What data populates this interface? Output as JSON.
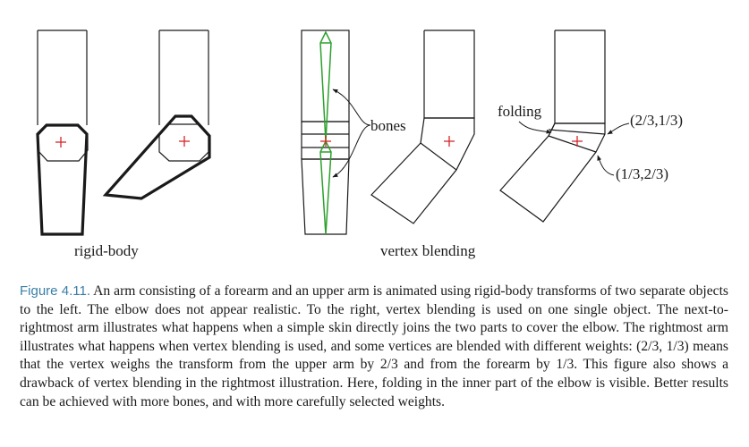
{
  "figure": {
    "labels": {
      "rigid_body": "rigid-body",
      "vertex_blending": "vertex blending",
      "bones": "bones",
      "folding": "folding",
      "weight_upper": "(2/3,1/3)",
      "weight_lower": "(1/3,2/3)"
    },
    "colors": {
      "outline": "#1a1a1a",
      "bone": "#2ca02c",
      "joint_marker": "#d62728",
      "caption_label": "#3a7fa8"
    }
  },
  "caption": {
    "label": "Figure 4.11.",
    "text": "An arm consisting of a forearm and an upper arm is animated using rigid-body transforms of two separate objects to the left. The elbow does not appear realistic. To the right, vertex blending is used on one single object. The next-to-rightmost arm illustrates what happens when a simple skin directly joins the two parts to cover the elbow. The rightmost arm illustrates what happens when vertex blending is used, and some vertices are blended with different weights: (2/3, 1/3) means that the vertex weighs the transform from the upper arm by 2/3 and from the forearm by 1/3. This figure also shows a drawback of vertex blending in the rightmost illustration. Here, folding in the inner part of the elbow is visible. Better results can be achieved with more bones, and with more carefully selected weights."
  }
}
